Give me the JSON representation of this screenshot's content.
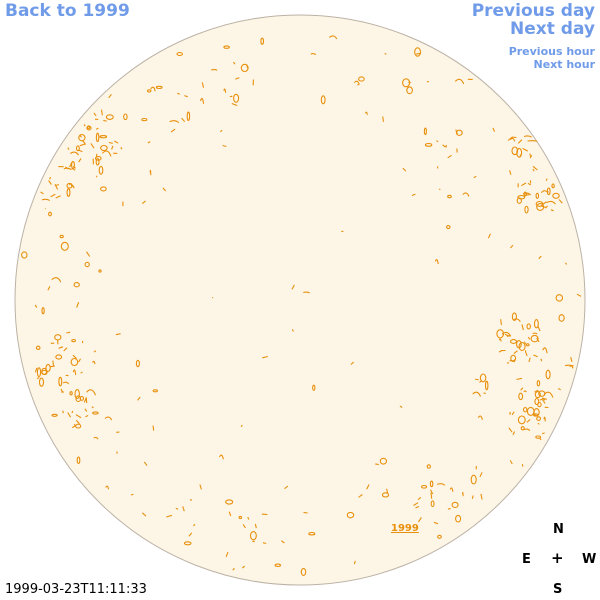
{
  "nav": {
    "back_label": "Back to 1999",
    "previous_day": "Previous day",
    "next_day": "Next day",
    "previous_hour": "Previous hour",
    "next_hour": "Next hour"
  },
  "map": {
    "year_label": "1999",
    "timestamp": "1999-03-23T11:11:33",
    "disk_fill": "#fdf6e7",
    "disk_border": "#bbb2a6",
    "contour_color": "#e8900c"
  },
  "compass": {
    "north": "N",
    "east": "E",
    "center": "+",
    "west": "W",
    "south": "S"
  }
}
